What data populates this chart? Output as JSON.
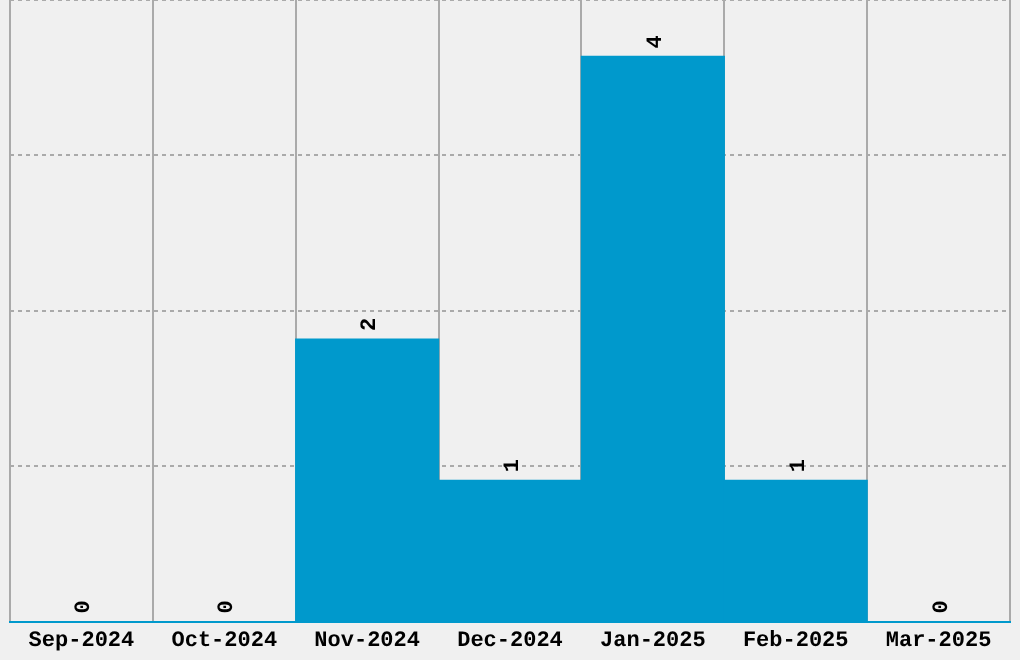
{
  "chart_data": {
    "type": "bar",
    "categories": [
      "Sep-2024",
      "Oct-2024",
      "Nov-2024",
      "Dec-2024",
      "Jan-2025",
      "Feb-2025",
      "Mar-2025"
    ],
    "values": [
      0,
      0,
      2,
      1,
      4,
      1,
      0
    ],
    "color": "#0099cc",
    "ylim": [
      0,
      4.4
    ],
    "yticks": [
      {
        "value": 0,
        "label": null
      },
      {
        "value": 1.1,
        "label": null
      },
      {
        "value": 2.2,
        "label": null
      },
      {
        "value": 3.3,
        "label": null
      },
      {
        "value": 4.4,
        "label": null
      }
    ],
    "tick_labels": "x",
    "grid": true,
    "data_labels": true
  }
}
